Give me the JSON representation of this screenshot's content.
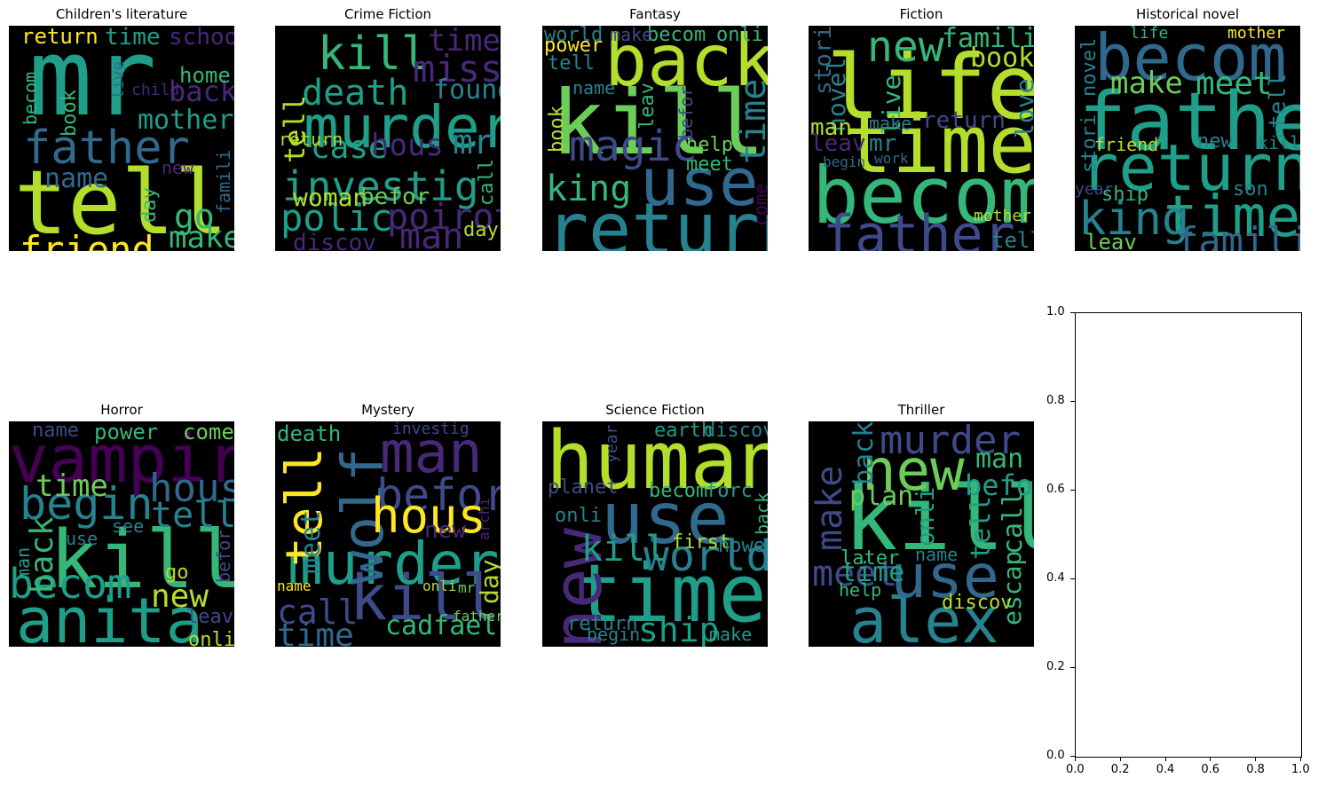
{
  "chart_data": {
    "type": "wordcloud",
    "colormap": "viridis",
    "background": "#000000",
    "panels": [
      {
        "title": "Children's literature",
        "words": [
          {
            "text": "mr",
            "weight": 1.0
          },
          {
            "text": "tell",
            "weight": 0.95
          },
          {
            "text": "father",
            "weight": 0.55
          },
          {
            "text": "friend",
            "weight": 0.45
          },
          {
            "text": "name",
            "weight": 0.35
          },
          {
            "text": "mother",
            "weight": 0.3
          },
          {
            "text": "back",
            "weight": 0.3
          },
          {
            "text": "make",
            "weight": 0.3
          },
          {
            "text": "go",
            "weight": 0.28
          },
          {
            "text": "return",
            "weight": 0.25
          },
          {
            "text": "time",
            "weight": 0.25
          },
          {
            "text": "school",
            "weight": 0.24
          },
          {
            "text": "home",
            "weight": 0.22
          },
          {
            "text": "day",
            "weight": 0.2
          },
          {
            "text": "book",
            "weight": 0.2
          },
          {
            "text": "becom",
            "weight": 0.2
          },
          {
            "text": "live",
            "weight": 0.18
          },
          {
            "text": "new",
            "weight": 0.18
          },
          {
            "text": "famili",
            "weight": 0.18
          },
          {
            "text": "child",
            "weight": 0.16
          }
        ]
      },
      {
        "title": "Crime Fiction",
        "words": [
          {
            "text": "murder",
            "weight": 1.0
          },
          {
            "text": "investig",
            "weight": 0.65
          },
          {
            "text": "kill",
            "weight": 0.55
          },
          {
            "text": "death",
            "weight": 0.5
          },
          {
            "text": "miss",
            "weight": 0.45
          },
          {
            "text": "polic",
            "weight": 0.45
          },
          {
            "text": "poirot",
            "weight": 0.4
          },
          {
            "text": "man",
            "weight": 0.4
          },
          {
            "text": "case",
            "weight": 0.38
          },
          {
            "text": "hous",
            "weight": 0.35
          },
          {
            "text": "mr",
            "weight": 0.35
          },
          {
            "text": "time",
            "weight": 0.33
          },
          {
            "text": "found",
            "weight": 0.3
          },
          {
            "text": "tell",
            "weight": 0.3
          },
          {
            "text": "woman",
            "weight": 0.28
          },
          {
            "text": "befor",
            "weight": 0.26
          },
          {
            "text": "discov",
            "weight": 0.26
          },
          {
            "text": "call",
            "weight": 0.2
          },
          {
            "text": "return",
            "weight": 0.18
          },
          {
            "text": "day",
            "weight": 0.18
          }
        ]
      },
      {
        "title": "Fantasy",
        "words": [
          {
            "text": "kill",
            "weight": 1.0
          },
          {
            "text": "back",
            "weight": 0.9
          },
          {
            "text": "return",
            "weight": 0.85
          },
          {
            "text": "use",
            "weight": 0.8
          },
          {
            "text": "magic",
            "weight": 0.55
          },
          {
            "text": "king",
            "weight": 0.5
          },
          {
            "text": "time",
            "weight": 0.45
          },
          {
            "text": "power",
            "weight": 0.25
          },
          {
            "text": "world",
            "weight": 0.25
          },
          {
            "text": "becom",
            "weight": 0.25
          },
          {
            "text": "help",
            "weight": 0.24
          },
          {
            "text": "tell",
            "weight": 0.22
          },
          {
            "text": "name",
            "weight": 0.22
          },
          {
            "text": "meet",
            "weight": 0.22
          },
          {
            "text": "book",
            "weight": 0.2
          },
          {
            "text": "leav",
            "weight": 0.2
          },
          {
            "text": "onli",
            "weight": 0.2
          },
          {
            "text": "make",
            "weight": 0.2
          },
          {
            "text": "befor",
            "weight": 0.18
          },
          {
            "text": "come",
            "weight": 0.18
          }
        ]
      },
      {
        "title": "Fiction",
        "words": [
          {
            "text": "life",
            "weight": 1.0
          },
          {
            "text": "becom",
            "weight": 0.95
          },
          {
            "text": "time",
            "weight": 0.9
          },
          {
            "text": "father",
            "weight": 0.7
          },
          {
            "text": "new",
            "weight": 0.5
          },
          {
            "text": "famili",
            "weight": 0.4
          },
          {
            "text": "book",
            "weight": 0.32
          },
          {
            "text": "novel",
            "weight": 0.3
          },
          {
            "text": "live",
            "weight": 0.28
          },
          {
            "text": "return",
            "weight": 0.28
          },
          {
            "text": "love",
            "weight": 0.28
          },
          {
            "text": "stori",
            "weight": 0.26
          },
          {
            "text": "man",
            "weight": 0.28
          },
          {
            "text": "leav",
            "weight": 0.26
          },
          {
            "text": "mr",
            "weight": 0.26
          },
          {
            "text": "tell",
            "weight": 0.24
          },
          {
            "text": "make",
            "weight": 0.2
          },
          {
            "text": "mother",
            "weight": 0.18
          },
          {
            "text": "work",
            "weight": 0.16
          },
          {
            "text": "begin",
            "weight": 0.15
          }
        ]
      },
      {
        "title": "Historical novel",
        "words": [
          {
            "text": "father",
            "weight": 1.0
          },
          {
            "text": "return",
            "weight": 0.9
          },
          {
            "text": "becom",
            "weight": 0.75
          },
          {
            "text": "time",
            "weight": 0.7
          },
          {
            "text": "king",
            "weight": 0.55
          },
          {
            "text": "famili",
            "weight": 0.5
          },
          {
            "text": "meet",
            "weight": 0.45
          },
          {
            "text": "make",
            "weight": 0.42
          },
          {
            "text": "tell",
            "weight": 0.3
          },
          {
            "text": "leav",
            "weight": 0.3
          },
          {
            "text": "ship",
            "weight": 0.28
          },
          {
            "text": "new",
            "weight": 0.26
          },
          {
            "text": "novel",
            "weight": 0.26
          },
          {
            "text": "son",
            "weight": 0.24
          },
          {
            "text": "stori",
            "weight": 0.22
          },
          {
            "text": "kill",
            "weight": 0.22
          },
          {
            "text": "friend",
            "weight": 0.22
          },
          {
            "text": "mother",
            "weight": 0.2
          },
          {
            "text": "life",
            "weight": 0.18
          },
          {
            "text": "year",
            "weight": 0.18
          }
        ]
      },
      {
        "title": "Horror",
        "words": [
          {
            "text": "kill",
            "weight": 1.0
          },
          {
            "text": "vampir",
            "weight": 0.9
          },
          {
            "text": "anita",
            "weight": 0.85
          },
          {
            "text": "begin",
            "weight": 0.55
          },
          {
            "text": "becom",
            "weight": 0.5
          },
          {
            "text": "hous",
            "weight": 0.45
          },
          {
            "text": "tell",
            "weight": 0.45
          },
          {
            "text": "back",
            "weight": 0.42
          },
          {
            "text": "time",
            "weight": 0.4
          },
          {
            "text": "new",
            "weight": 0.35
          },
          {
            "text": "come",
            "weight": 0.25
          },
          {
            "text": "power",
            "weight": 0.25
          },
          {
            "text": "name",
            "weight": 0.22
          },
          {
            "text": "go",
            "weight": 0.22
          },
          {
            "text": "leav",
            "weight": 0.22
          },
          {
            "text": "onli",
            "weight": 0.22
          },
          {
            "text": "man",
            "weight": 0.2
          },
          {
            "text": "use",
            "weight": 0.2
          },
          {
            "text": "see",
            "weight": 0.2
          },
          {
            "text": "befor",
            "weight": 0.18
          }
        ]
      },
      {
        "title": "Mystery",
        "words": [
          {
            "text": "murder",
            "weight": 1.0
          },
          {
            "text": "kill",
            "weight": 0.85
          },
          {
            "text": "wolf",
            "weight": 0.7
          },
          {
            "text": "man",
            "weight": 0.6
          },
          {
            "text": "tell",
            "weight": 0.6
          },
          {
            "text": "befor",
            "weight": 0.55
          },
          {
            "text": "hous",
            "weight": 0.55
          },
          {
            "text": "call",
            "weight": 0.45
          },
          {
            "text": "time",
            "weight": 0.42
          },
          {
            "text": "cadfael",
            "weight": 0.38
          },
          {
            "text": "meet",
            "weight": 0.3
          },
          {
            "text": "new",
            "weight": 0.3
          },
          {
            "text": "day",
            "weight": 0.3
          },
          {
            "text": "death",
            "weight": 0.26
          },
          {
            "text": "investig",
            "weight": 0.18
          },
          {
            "text": "name",
            "weight": 0.18
          },
          {
            "text": "onli",
            "weight": 0.16
          },
          {
            "text": "mr",
            "weight": 0.16
          },
          {
            "text": "father",
            "weight": 0.16
          },
          {
            "text": "archi",
            "weight": 0.14
          }
        ]
      },
      {
        "title": "Science Fiction",
        "words": [
          {
            "text": "human",
            "weight": 1.0
          },
          {
            "text": "time",
            "weight": 0.95
          },
          {
            "text": "use",
            "weight": 0.85
          },
          {
            "text": "new",
            "weight": 0.85
          },
          {
            "text": "world",
            "weight": 0.5
          },
          {
            "text": "kill",
            "weight": 0.45
          },
          {
            "text": "ship",
            "weight": 0.4
          },
          {
            "text": "earth",
            "weight": 0.26
          },
          {
            "text": "discov",
            "weight": 0.24
          },
          {
            "text": "planet",
            "weight": 0.24
          },
          {
            "text": "becom",
            "weight": 0.24
          },
          {
            "text": "forc",
            "weight": 0.24
          },
          {
            "text": "onli",
            "weight": 0.24
          },
          {
            "text": "back",
            "weight": 0.22
          },
          {
            "text": "first",
            "weight": 0.22
          },
          {
            "text": "howev",
            "weight": 0.22
          },
          {
            "text": "return",
            "weight": 0.22
          },
          {
            "text": "year",
            "weight": 0.18
          },
          {
            "text": "begin",
            "weight": 0.18
          },
          {
            "text": "make",
            "weight": 0.18
          }
        ]
      },
      {
        "title": "Thriller",
        "words": [
          {
            "text": "kill",
            "weight": 1.0
          },
          {
            "text": "alex",
            "weight": 0.85
          },
          {
            "text": "new",
            "weight": 0.7
          },
          {
            "text": "use",
            "weight": 0.7
          },
          {
            "text": "murder",
            "weight": 0.5
          },
          {
            "text": "make",
            "weight": 0.5
          },
          {
            "text": "meet",
            "weight": 0.45
          },
          {
            "text": "back",
            "weight": 0.35
          },
          {
            "text": "befor",
            "weight": 0.32
          },
          {
            "text": "escap",
            "weight": 0.32
          },
          {
            "text": "plan",
            "weight": 0.3
          },
          {
            "text": "call",
            "weight": 0.3
          },
          {
            "text": "tell",
            "weight": 0.3
          },
          {
            "text": "man",
            "weight": 0.28
          },
          {
            "text": "time",
            "weight": 0.28
          },
          {
            "text": "onli",
            "weight": 0.26
          },
          {
            "text": "discov",
            "weight": 0.24
          },
          {
            "text": "later",
            "weight": 0.22
          },
          {
            "text": "name",
            "weight": 0.2
          },
          {
            "text": "help",
            "weight": 0.2
          }
        ]
      }
    ],
    "empty_axes": {
      "xlim": [
        0.0,
        1.0
      ],
      "ylim": [
        0.0,
        1.0
      ],
      "xticks": [
        "0.0",
        "0.2",
        "0.4",
        "0.6",
        "0.8",
        "1.0"
      ],
      "yticks": [
        "0.0",
        "0.2",
        "0.4",
        "0.6",
        "0.8",
        "1.0"
      ]
    }
  }
}
